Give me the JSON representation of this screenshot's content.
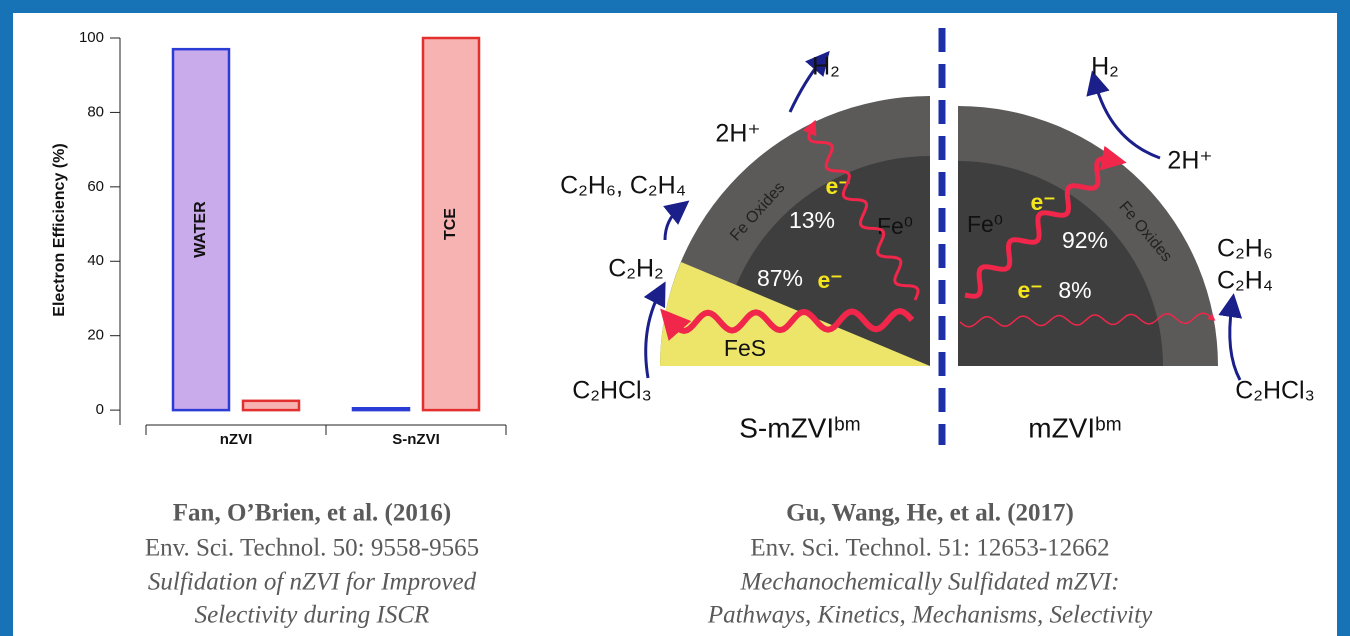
{
  "chart_data": {
    "type": "bar",
    "y_label": "Electron Efficiency (%)",
    "categories": [
      "nZVI",
      "S-nZVI"
    ],
    "series": [
      {
        "name": "WATER",
        "color": "#2b3bd6",
        "fill": "#c9aaea",
        "values": [
          97,
          0.5
        ]
      },
      {
        "name": "TCE",
        "color": "#e3302f",
        "fill": "#f6b3b1",
        "values": [
          2.5,
          100
        ]
      }
    ],
    "ylim": [
      -4,
      100
    ],
    "yticks": [
      0,
      20,
      40,
      60,
      80,
      100
    ]
  },
  "diagram": {
    "left": {
      "h2": "H₂",
      "protons": "2H⁺",
      "ethane_ethene": "C₂H₆, C₂H₄",
      "acetylene": "C₂H₂",
      "tce": "C₂HCl₃",
      "shell": "Fe Oxides",
      "electron_top": "e⁻",
      "pct_top": "13%",
      "core": "Fe⁰",
      "pct_bottom": "87%",
      "electron_bottom": "e⁻",
      "fes": "FeS",
      "label": "S-mZVIᵇᵐ"
    },
    "right": {
      "h2": "H₂",
      "protons": "2H⁺",
      "core": "Fe⁰",
      "electron_top": "e⁻",
      "pct_top": "92%",
      "shell": "Fe Oxides",
      "ethane": "C₂H₆",
      "ethene": "C₂H₄",
      "electron_bottom": "e⁻",
      "pct_bottom": "8%",
      "tce": "C₂HCl₃",
      "label": "mZVIᵇᵐ"
    }
  },
  "citations": [
    {
      "authors": "Fan, O’Brien, et al. (2016)",
      "journal": "Env. Sci. Technol. 50: 9558-9565",
      "title_lines": [
        "Sulfidation of nZVI for Improved",
        "Selectivity during ISCR"
      ]
    },
    {
      "authors": "Gu, Wang, He, et al. (2017)",
      "journal": "Env. Sci. Technol. 51: 12653-12662",
      "title_lines": [
        "Mechanochemically Sulfidated mZVI:",
        "Pathways, Kinetics, Mechanisms, Selectivity"
      ]
    }
  ]
}
